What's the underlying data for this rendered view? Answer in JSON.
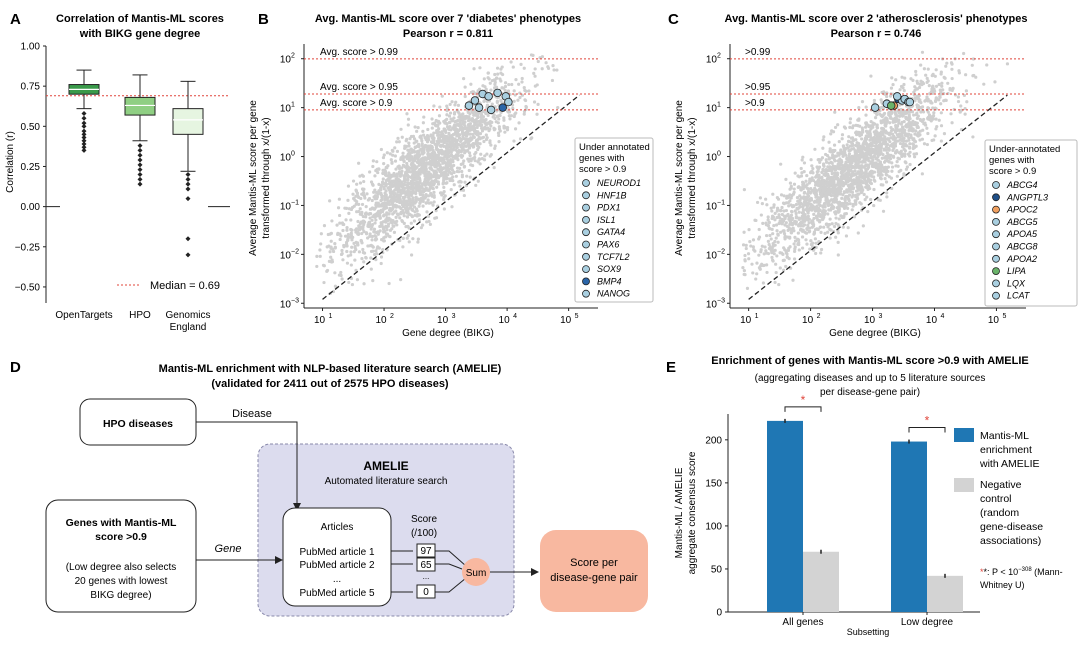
{
  "colors": {
    "grey_points": "#cfcfcf",
    "bar_blue": "#1f77b4",
    "bar_grey": "#d3d3d3",
    "red": "#e0443a",
    "box_ot": "#3a9a4a",
    "box_hpo": "#8fcf83",
    "box_ge": "#e6f5e1",
    "amelie_bg": "#dcdcee",
    "score_box": "#f8b8a0",
    "sum_circle": "#f8b8a0"
  },
  "panelA": {
    "letter": "A",
    "title_line1": "Correlation of Mantis-ML scores",
    "title_line2": "with BIKG gene degree",
    "ylabel": "Correlation (r)",
    "median_label": "Median = 0.69",
    "yticks": [
      "1.00",
      "0.75",
      "0.50",
      "0.25",
      "0.00",
      "−0.25",
      "−0.50"
    ],
    "xticks": [
      "OpenTargets",
      "HPO",
      "Genomics",
      "England"
    ]
  },
  "panelB": {
    "letter": "B",
    "title": "Avg. Mantis-ML score over 7 'diabetes' phenotypes",
    "pearson": "Pearson r = 0.811",
    "ylabel_line1": "Average Mantis-ML score per gene",
    "ylabel_line2": "transformed through x/(1-x)",
    "xlabel": "Gene degree (BIKG)",
    "thresholds": [
      "Avg. score > 0.99",
      "Avg. score > 0.95",
      "Avg. score > 0.9"
    ],
    "legend_title": [
      "Under annotated",
      "genes with",
      "score > 0.9"
    ],
    "genes": [
      "NEUROD1",
      "HNF1B",
      "PDX1",
      "ISL1",
      "GATA4",
      "PAX6",
      "TCF7L2",
      "SOX9",
      "BMP4",
      "NANOG"
    ]
  },
  "panelC": {
    "letter": "C",
    "title": "Avg. Mantis-ML score over 2 'atherosclerosis' phenotypes",
    "pearson": "Pearson r = 0.746",
    "ylabel_line1": "Average Mantis-ML score per gene",
    "ylabel_line2": "transformed through x/(1-x)",
    "xlabel": "Gene degree (BIKG)",
    "thresholds": [
      ">0.99",
      ">0.95",
      ">0.9"
    ],
    "legend_title": [
      "Under-annotated",
      "genes with",
      "score > 0.9"
    ],
    "genes": [
      "ABCG4",
      "ANGPTL3",
      "APOC2",
      "ABCG5",
      "APOA5",
      "ABCG8",
      "APOA2",
      "LIPA",
      "LQX",
      "LCAT"
    ]
  },
  "axis_ticks": {
    "x": [
      "10",
      "10",
      "10",
      "10",
      "10"
    ],
    "x_exp": [
      "1",
      "2",
      "3",
      "4",
      "5"
    ],
    "y": [
      "10",
      "10",
      "10",
      "10",
      "10",
      "10"
    ],
    "y_exp": [
      "2",
      "1",
      "0",
      "−1",
      "−2",
      "−3"
    ]
  },
  "panelD": {
    "letter": "D",
    "title_line1": "Mantis-ML enrichment with NLP-based literature search (AMELIE)",
    "title_line2": "(validated for 2411 out of 2575 HPO diseases)",
    "hpo_box": "HPO diseases",
    "disease_label": "Disease",
    "genes_box_title1": "Genes with Mantis-ML",
    "genes_box_title2": "score >0.9",
    "genes_box_sub1": "(Low degree also selects",
    "genes_box_sub2": "20 genes with lowest",
    "genes_box_sub3": "BIKG degree)",
    "gene_label": "Gene",
    "amelie_title": "AMELIE",
    "amelie_sub": "Automated literature search",
    "articles": "Articles",
    "article1": "PubMed article 1",
    "article2": "PubMed article 2",
    "ellipsis": "...",
    "article5": "PubMed article 5",
    "score_header1": "Score",
    "score_header2": "(/100)",
    "scores": [
      "97",
      "65",
      "0"
    ],
    "sum": "Sum",
    "result_line1": "Score per",
    "result_line2": "disease-gene pair"
  },
  "panelE": {
    "letter": "E",
    "title": "Enrichment of genes with Mantis-ML score >0.9 with AMELIE",
    "subtitle1": "(aggregating diseases and up to 5 literature sources",
    "subtitle2": "per disease-gene pair)",
    "ylabel_line1": "Mantis-ML / AMELIE",
    "ylabel_line2": "aggregate consensus score",
    "xlabel": "Subsetting",
    "yticks": [
      "0",
      "50",
      "100",
      "150",
      "200"
    ],
    "legend_blue": [
      "Mantis-ML",
      "enrichment",
      "with AMELIE"
    ],
    "legend_grey": [
      "Negative",
      "control",
      "(random",
      "gene-disease",
      "associations)"
    ],
    "footnote1": "*: P < 10",
    "footnote_exp": "−308",
    "footnote2": " (Mann-",
    "footnote3": "Whitney U)",
    "star": "*"
  },
  "chart_data": [
    {
      "type": "box",
      "title": "Correlation of Mantis-ML scores with BIKG gene degree",
      "ylabel": "Correlation (r)",
      "categories": [
        "OpenTargets",
        "HPO",
        "Genomics England"
      ],
      "ylim": [
        -0.6,
        1.0
      ],
      "median_line": 0.69,
      "boxes": [
        {
          "name": "OpenTargets",
          "q1": 0.7,
          "median": 0.73,
          "q3": 0.76,
          "whisker_low": 0.61,
          "whisker_high": 0.85
        },
        {
          "name": "HPO",
          "q1": 0.57,
          "median": 0.63,
          "q3": 0.68,
          "whisker_low": 0.41,
          "whisker_high": 0.82
        },
        {
          "name": "Genomics England",
          "q1": 0.45,
          "median": 0.54,
          "q3": 0.61,
          "whisker_low": 0.22,
          "whisker_high": 0.78
        }
      ]
    },
    {
      "type": "scatter",
      "title": "Avg. Mantis-ML score over 7 'diabetes' phenotypes",
      "xlabel": "Gene degree (BIKG)",
      "x_scale": "log",
      "y_scale": "log",
      "xlim": [
        5,
        300000
      ],
      "ylim": [
        0.0008,
        200
      ],
      "pearson_r": 0.811,
      "thresholds": [
        99,
        19,
        9
      ],
      "highlighted": [
        {
          "gene": "NEUROD1",
          "x": 3500,
          "y": 10
        },
        {
          "gene": "HNF1B",
          "x": 4000,
          "y": 19
        },
        {
          "gene": "PDX1",
          "x": 5000,
          "y": 17
        },
        {
          "gene": "ISL1",
          "x": 3000,
          "y": 14
        },
        {
          "gene": "GATA4",
          "x": 7000,
          "y": 20
        },
        {
          "gene": "PAX6",
          "x": 9500,
          "y": 17
        },
        {
          "gene": "TCF7L2",
          "x": 10500,
          "y": 13
        },
        {
          "gene": "SOX9",
          "x": 5500,
          "y": 9
        },
        {
          "gene": "BMP4",
          "x": 8500,
          "y": 10
        },
        {
          "gene": "NANOG",
          "x": 2400,
          "y": 11
        }
      ]
    },
    {
      "type": "scatter",
      "title": "Avg. Mantis-ML score over 2 'atherosclerosis' phenotypes",
      "xlabel": "Gene degree (BIKG)",
      "x_scale": "log",
      "y_scale": "log",
      "xlim": [
        5,
        300000
      ],
      "ylim": [
        0.0008,
        200
      ],
      "pearson_r": 0.746,
      "thresholds": [
        99,
        19,
        9
      ],
      "highlighted": [
        {
          "gene": "ABCG4",
          "x": 1700,
          "y": 12
        },
        {
          "gene": "ANGPTL3",
          "x": 2600,
          "y": 15
        },
        {
          "gene": "APOC2",
          "x": 2200,
          "y": 11
        },
        {
          "gene": "ABCG5",
          "x": 3000,
          "y": 14
        },
        {
          "gene": "APOA5",
          "x": 3300,
          "y": 15
        },
        {
          "gene": "ABCG8",
          "x": 2500,
          "y": 17
        },
        {
          "gene": "APOA2",
          "x": 3800,
          "y": 13
        },
        {
          "gene": "LIPA",
          "x": 2000,
          "y": 11
        },
        {
          "gene": "LQX",
          "x": 1100,
          "y": 10
        },
        {
          "gene": "LCAT",
          "x": 4000,
          "y": 13
        }
      ]
    },
    {
      "type": "bar",
      "title": "Enrichment of genes with Mantis-ML score >0.9 with AMELIE",
      "xlabel": "Subsetting",
      "ylabel": "Mantis-ML / AMELIE aggregate consensus score",
      "categories": [
        "All genes",
        "Low degree"
      ],
      "ylim": [
        0,
        230
      ],
      "series": [
        {
          "name": "Mantis-ML enrichment with AMELIE",
          "values": [
            222,
            198
          ]
        },
        {
          "name": "Negative control (random gene-disease associations)",
          "values": [
            70,
            42
          ]
        }
      ]
    }
  ]
}
